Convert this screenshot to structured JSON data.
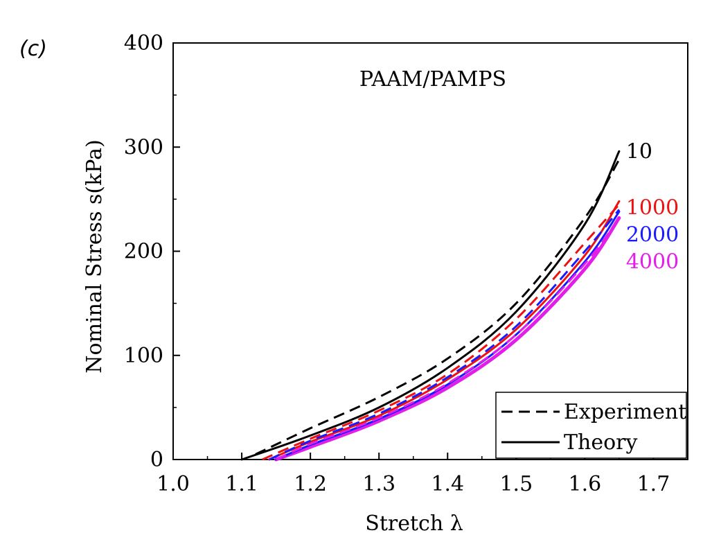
{
  "panel_label": "(c)",
  "colors": {
    "n10": "#000000",
    "n1000": "#ee1111",
    "n2000": "#1a1aff",
    "n4000": "#e21ee8"
  },
  "chart_data": {
    "type": "line",
    "title": "PAAM/PAMPS",
    "xlabel": "Stretch λ",
    "ylabel": "Nominal Stress s(kPa)",
    "xlim": [
      1.0,
      1.75
    ],
    "ylim": [
      0,
      400
    ],
    "xticks": [
      1.0,
      1.1,
      1.2,
      1.3,
      1.4,
      1.5,
      1.6,
      1.7
    ],
    "xtick_labels": [
      "1.0",
      "1.1",
      "1.2",
      "1.3",
      "1.4",
      "1.5",
      "1.6",
      "1.7"
    ],
    "yticks": [
      0,
      100,
      200,
      300,
      400
    ],
    "ytick_labels": [
      "0",
      "100",
      "200",
      "300",
      "400"
    ],
    "grid": false,
    "legend": {
      "position": "bottom-right",
      "entries": [
        {
          "label": "Experiment",
          "style": "dashed"
        },
        {
          "label": "Theory",
          "style": "solid"
        }
      ]
    },
    "series": [
      {
        "name": "10",
        "kind": "experiment",
        "color_key": "n10",
        "x": [
          1.12,
          1.2,
          1.3,
          1.4,
          1.5,
          1.6,
          1.65
        ],
        "y": [
          5,
          30,
          60,
          97,
          150,
          232,
          288
        ]
      },
      {
        "name": "10",
        "kind": "theory",
        "color_key": "n10",
        "x": [
          1.1,
          1.2,
          1.3,
          1.4,
          1.5,
          1.6,
          1.65
        ],
        "y": [
          0,
          23,
          50,
          88,
          142,
          226,
          296
        ]
      },
      {
        "name": "1000",
        "kind": "experiment",
        "color_key": "n1000",
        "x": [
          1.13,
          1.2,
          1.3,
          1.4,
          1.5,
          1.6,
          1.65
        ],
        "y": [
          0,
          20,
          47,
          82,
          135,
          208,
          245
        ]
      },
      {
        "name": "1000",
        "kind": "theory",
        "color_key": "n1000",
        "x": [
          1.14,
          1.2,
          1.3,
          1.4,
          1.5,
          1.6,
          1.65
        ],
        "y": [
          0,
          17,
          42,
          77,
          125,
          196,
          248
        ]
      },
      {
        "name": "2000",
        "kind": "experiment",
        "color_key": "n2000",
        "x": [
          1.14,
          1.2,
          1.3,
          1.4,
          1.5,
          1.6,
          1.65
        ],
        "y": [
          0,
          18,
          44,
          79,
          128,
          200,
          240
        ]
      },
      {
        "name": "2000",
        "kind": "theory",
        "color_key": "n2000",
        "x": [
          1.15,
          1.2,
          1.3,
          1.4,
          1.5,
          1.6,
          1.65
        ],
        "y": [
          0,
          14,
          39,
          72,
          120,
          190,
          238
        ]
      },
      {
        "name": "4000",
        "kind": "experiment",
        "color_key": "n4000",
        "x": [
          1.15,
          1.2,
          1.3,
          1.4,
          1.5,
          1.6,
          1.65
        ],
        "y": [
          0,
          15,
          40,
          73,
          120,
          188,
          232
        ]
      },
      {
        "name": "4000",
        "kind": "theory",
        "color_key": "n4000",
        "x": [
          1.15,
          1.2,
          1.3,
          1.4,
          1.5,
          1.6,
          1.65
        ],
        "y": [
          0,
          12,
          37,
          69,
          115,
          183,
          232
        ]
      }
    ],
    "curve_labels": [
      {
        "text": "10",
        "color_key": "n10"
      },
      {
        "text": "1000",
        "color_key": "n1000"
      },
      {
        "text": "2000",
        "color_key": "n2000"
      },
      {
        "text": "4000",
        "color_key": "n4000"
      }
    ]
  }
}
